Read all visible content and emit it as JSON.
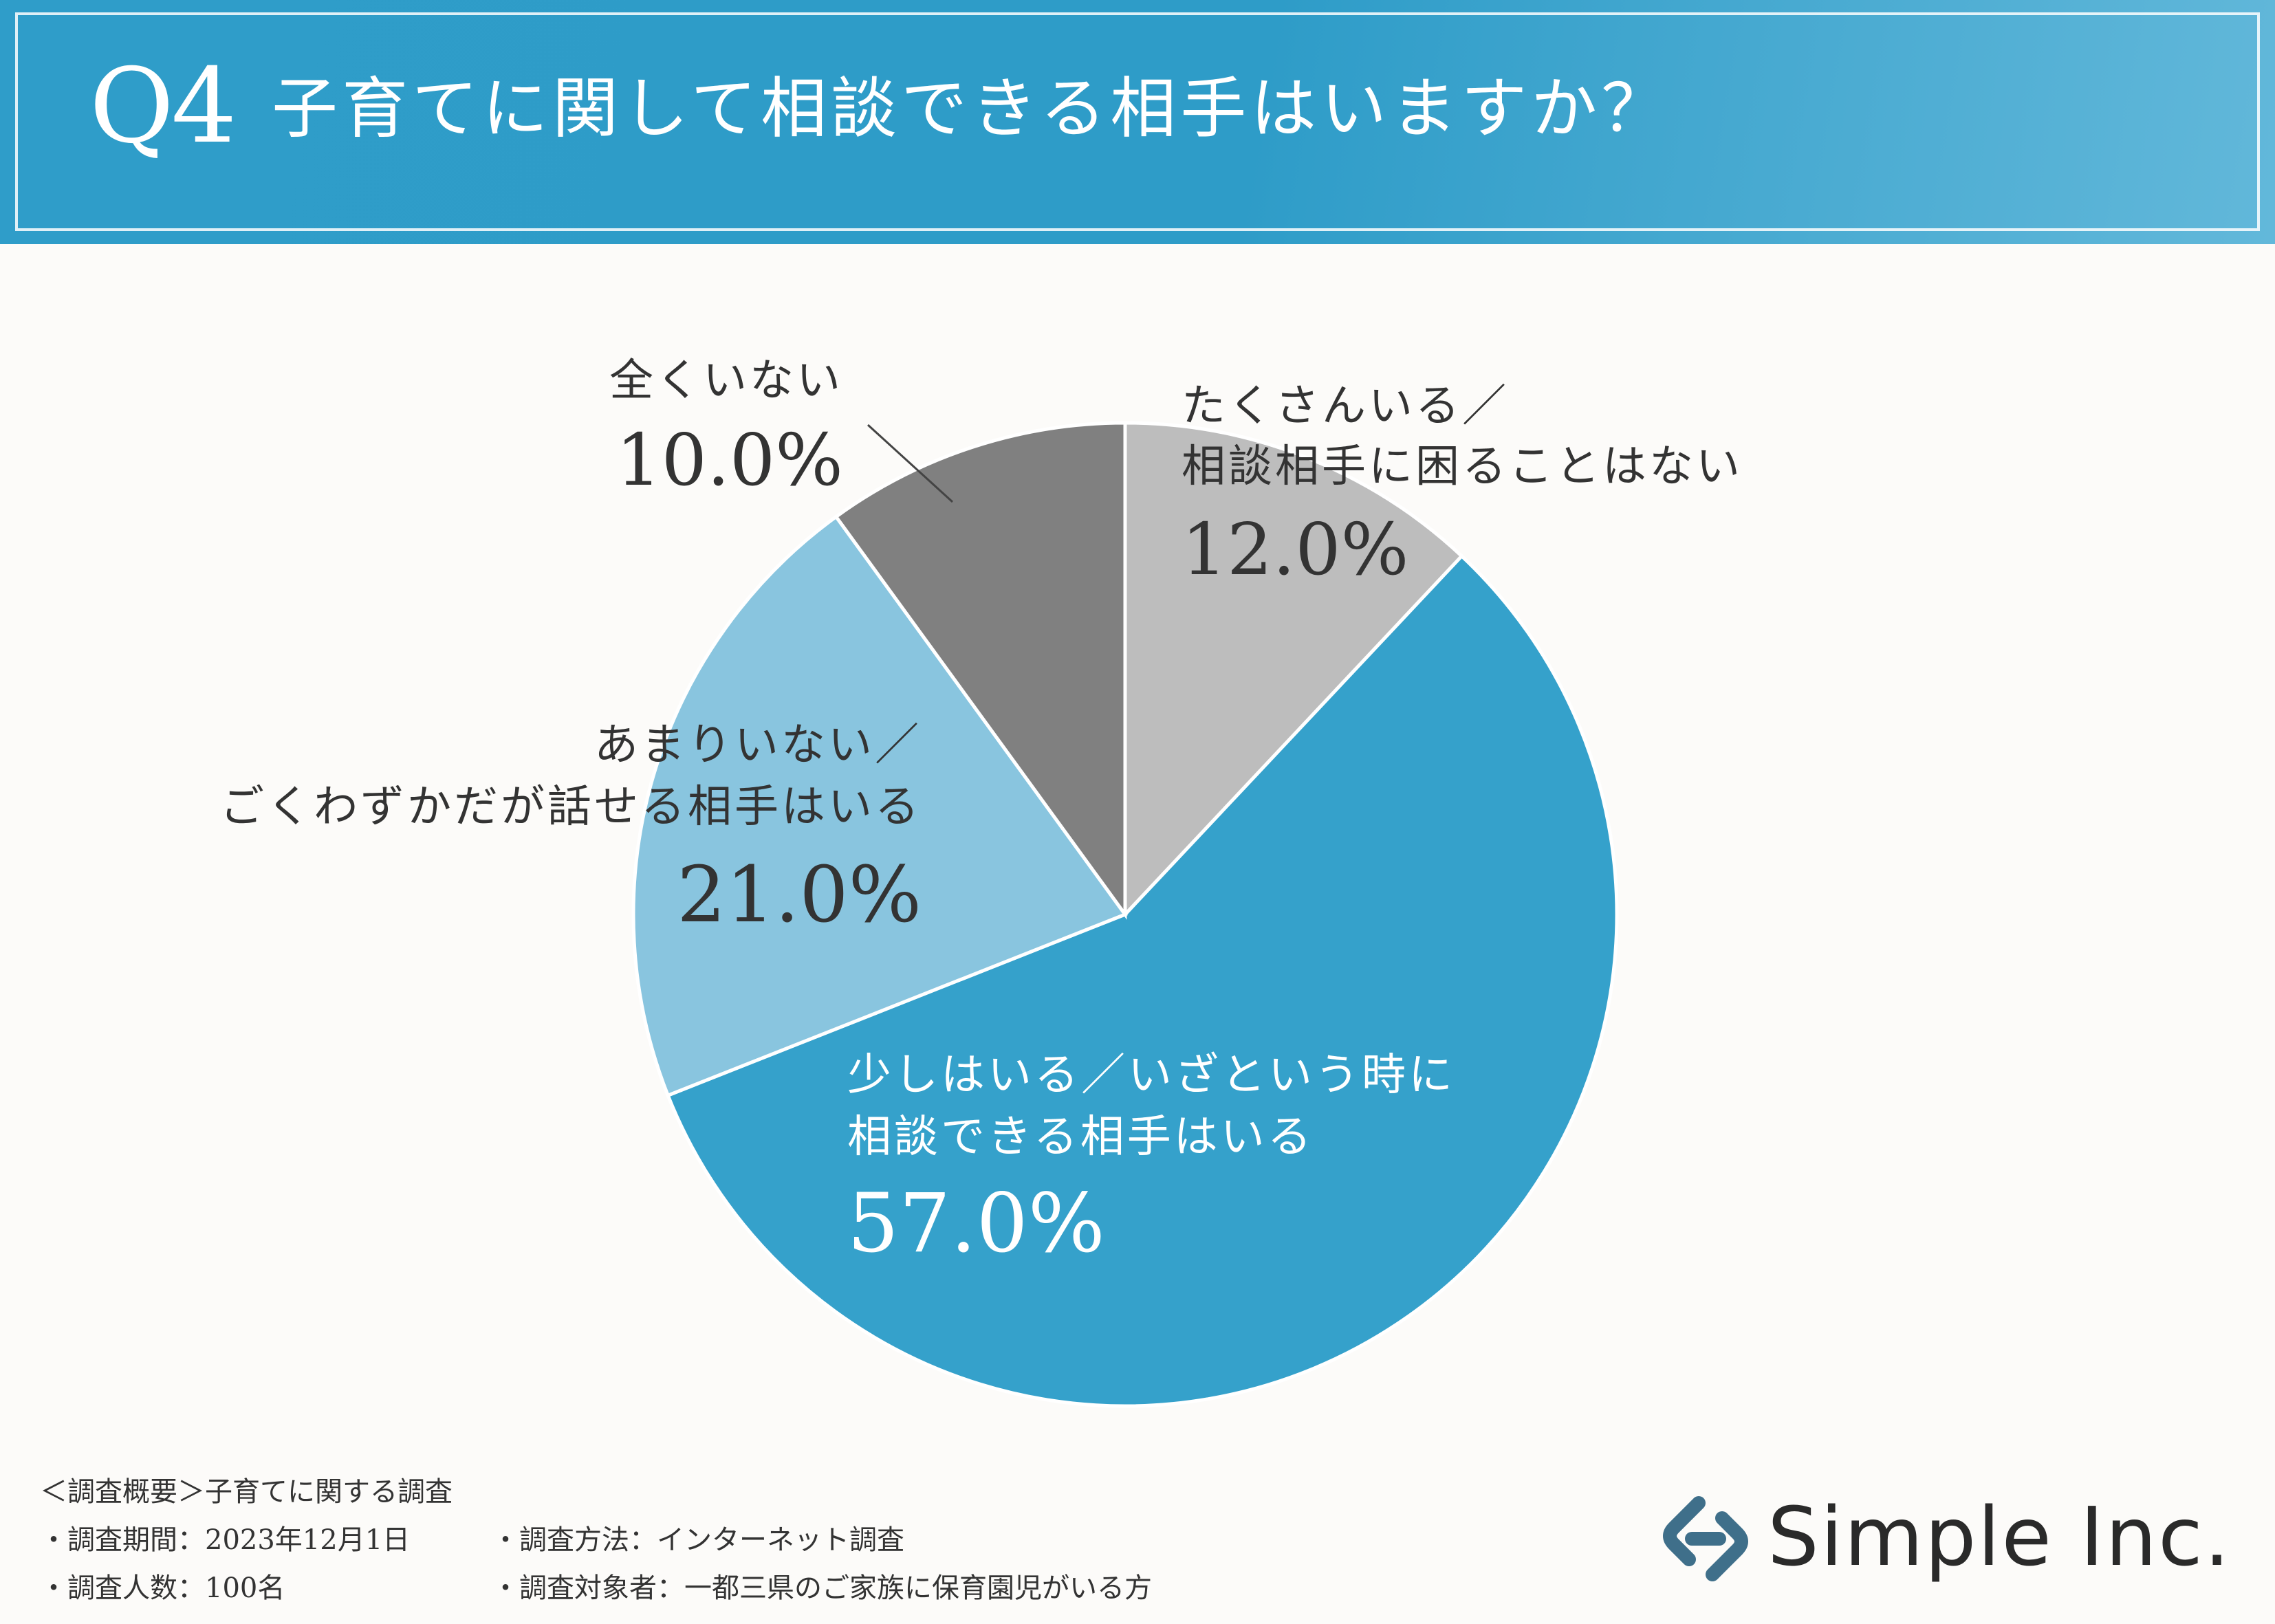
{
  "header": {
    "q_number": "Q4",
    "title": "子育てに関して相談できる相手はいますか？"
  },
  "chart_data": {
    "type": "pie",
    "title": "子育てに関して相談できる相手はいますか？",
    "slices": [
      {
        "name": "たくさんいる／相談相手に困ることはない",
        "lines": [
          "たくさんいる／",
          "相談相手に困ることはない"
        ],
        "value": 12.0,
        "value_label": "12.0%",
        "color": "#bdbdbd",
        "text_color": "#333333"
      },
      {
        "name": "少しはいる／いざという時に相談できる相手はいる",
        "lines": [
          "少しはいる／いざという時に",
          "相談できる相手はいる"
        ],
        "value": 57.0,
        "value_label": "57.0%",
        "color": "#35a1cb",
        "text_color": "#ffffff"
      },
      {
        "name": "あまりいない／ごくわずかだが話せる相手はいる",
        "lines": [
          "あまりいない／",
          "ごくわずかだが話せる相手はいる"
        ],
        "value": 21.0,
        "value_label": "21.0%",
        "color": "#89c5df",
        "text_color": "#333333"
      },
      {
        "name": "全くいない",
        "lines": [
          "全くいない"
        ],
        "value": 10.0,
        "value_label": "10.0%",
        "color": "#808080",
        "text_color": "#333333"
      }
    ]
  },
  "footer": {
    "summary": "＜調査概要＞子育てに関する調査",
    "period": "・調査期間：2023年12月1日",
    "method": "・調査方法：インターネット調査",
    "count": "・調査人数：100名",
    "target": "・調査対象者：一都三県のご家族に保育園児がいる方"
  },
  "brand": {
    "name": "Simple Inc.",
    "icon": "chain-link-logo-icon",
    "icon_color": "#3f6f8a"
  }
}
